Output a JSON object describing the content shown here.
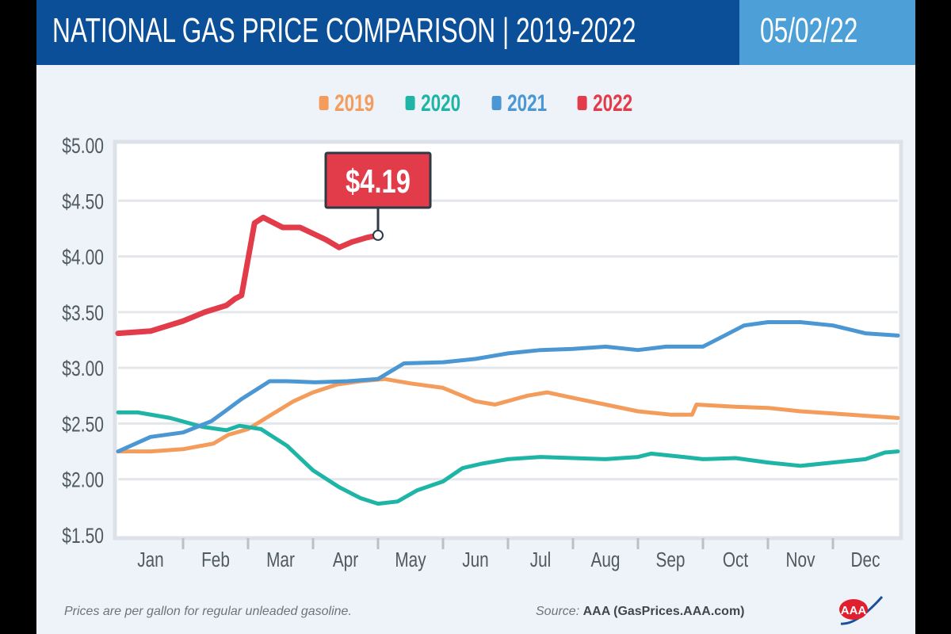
{
  "header": {
    "title": "NATIONAL GAS PRICE COMPARISON | 2019-2022",
    "date": "05/02/22"
  },
  "footer": {
    "note": "Prices are per gallon for regular unleaded gasoline.",
    "source_label": "Source:",
    "source_value": "AAA (GasPrices.AAA.com)",
    "logo": "AAA"
  },
  "chart_data": {
    "type": "line",
    "title": "NATIONAL GAS PRICE COMPARISON | 2019-2022",
    "xlabel": "",
    "ylabel": "",
    "categories": [
      "Jan",
      "Feb",
      "Mar",
      "Apr",
      "May",
      "Jun",
      "Jul",
      "Aug",
      "Sep",
      "Oct",
      "Nov",
      "Dec"
    ],
    "yticks": [
      "$1.50",
      "$2.00",
      "$2.50",
      "$3.00",
      "$3.50",
      "$4.00",
      "$4.50",
      "$5.00"
    ],
    "ylim": [
      1.5,
      5.0
    ],
    "grid": true,
    "legend": "top-center",
    "annotation": {
      "series": "2022",
      "text": "$4.19",
      "x": "05-01",
      "y": 4.19
    },
    "series": [
      {
        "name": "2019",
        "color": "#f39c5c",
        "points": [
          [
            "01-01",
            2.25
          ],
          [
            "01-16",
            2.25
          ],
          [
            "02-01",
            2.27
          ],
          [
            "02-15",
            2.32
          ],
          [
            "02-22",
            2.4
          ],
          [
            "03-01",
            2.45
          ],
          [
            "03-11",
            2.57
          ],
          [
            "03-22",
            2.7
          ],
          [
            "04-01",
            2.78
          ],
          [
            "04-12",
            2.85
          ],
          [
            "04-23",
            2.88
          ],
          [
            "05-04",
            2.9
          ],
          [
            "05-16",
            2.86
          ],
          [
            "06-01",
            2.82
          ],
          [
            "06-16",
            2.7
          ],
          [
            "06-25",
            2.67
          ],
          [
            "07-10",
            2.75
          ],
          [
            "07-19",
            2.78
          ],
          [
            "08-01",
            2.73
          ],
          [
            "08-16",
            2.67
          ],
          [
            "09-01",
            2.61
          ],
          [
            "09-16",
            2.58
          ],
          [
            "09-26",
            2.58
          ],
          [
            "09-28",
            2.67
          ],
          [
            "10-16",
            2.65
          ],
          [
            "11-01",
            2.64
          ],
          [
            "11-16",
            2.61
          ],
          [
            "12-01",
            2.59
          ],
          [
            "12-16",
            2.57
          ],
          [
            "12-31",
            2.55
          ]
        ]
      },
      {
        "name": "2020",
        "color": "#1fb5a6",
        "points": [
          [
            "01-01",
            2.6
          ],
          [
            "01-10",
            2.6
          ],
          [
            "01-25",
            2.55
          ],
          [
            "02-10",
            2.47
          ],
          [
            "02-21",
            2.44
          ],
          [
            "02-27",
            2.48
          ],
          [
            "03-07",
            2.45
          ],
          [
            "03-19",
            2.3
          ],
          [
            "04-01",
            2.08
          ],
          [
            "04-13",
            1.93
          ],
          [
            "04-23",
            1.83
          ],
          [
            "05-01",
            1.78
          ],
          [
            "05-10",
            1.8
          ],
          [
            "05-19",
            1.9
          ],
          [
            "06-01",
            1.98
          ],
          [
            "06-10",
            2.1
          ],
          [
            "06-19",
            2.14
          ],
          [
            "07-01",
            2.18
          ],
          [
            "07-16",
            2.2
          ],
          [
            "08-01",
            2.19
          ],
          [
            "08-16",
            2.18
          ],
          [
            "09-01",
            2.2
          ],
          [
            "09-07",
            2.23
          ],
          [
            "09-22",
            2.2
          ],
          [
            "10-01",
            2.18
          ],
          [
            "10-16",
            2.19
          ],
          [
            "11-01",
            2.15
          ],
          [
            "11-16",
            2.12
          ],
          [
            "12-01",
            2.15
          ],
          [
            "12-16",
            2.18
          ],
          [
            "12-25",
            2.24
          ],
          [
            "12-31",
            2.25
          ]
        ]
      },
      {
        "name": "2021",
        "color": "#4a97d4",
        "points": [
          [
            "01-01",
            2.25
          ],
          [
            "01-16",
            2.38
          ],
          [
            "02-01",
            2.42
          ],
          [
            "02-14",
            2.52
          ],
          [
            "02-21",
            2.62
          ],
          [
            "02-28",
            2.72
          ],
          [
            "03-11",
            2.88
          ],
          [
            "03-19",
            2.88
          ],
          [
            "04-02",
            2.87
          ],
          [
            "04-17",
            2.88
          ],
          [
            "05-01",
            2.9
          ],
          [
            "05-13",
            3.04
          ],
          [
            "06-01",
            3.05
          ],
          [
            "06-16",
            3.08
          ],
          [
            "07-01",
            3.13
          ],
          [
            "07-16",
            3.16
          ],
          [
            "08-01",
            3.17
          ],
          [
            "08-16",
            3.19
          ],
          [
            "09-01",
            3.16
          ],
          [
            "09-14",
            3.19
          ],
          [
            "10-01",
            3.19
          ],
          [
            "10-10",
            3.28
          ],
          [
            "10-20",
            3.38
          ],
          [
            "11-01",
            3.41
          ],
          [
            "11-16",
            3.41
          ],
          [
            "12-01",
            3.38
          ],
          [
            "12-16",
            3.31
          ],
          [
            "12-31",
            3.29
          ]
        ]
      },
      {
        "name": "2022",
        "color": "#e23b4a",
        "points": [
          [
            "01-01",
            3.31
          ],
          [
            "01-16",
            3.33
          ],
          [
            "02-01",
            3.42
          ],
          [
            "02-11",
            3.5
          ],
          [
            "02-21",
            3.56
          ],
          [
            "02-25",
            3.62
          ],
          [
            "02-28",
            3.65
          ],
          [
            "03-04",
            4.3
          ],
          [
            "03-08",
            4.35
          ],
          [
            "03-17",
            4.26
          ],
          [
            "03-25",
            4.26
          ],
          [
            "04-07",
            4.15
          ],
          [
            "04-13",
            4.08
          ],
          [
            "04-19",
            4.13
          ],
          [
            "04-26",
            4.17
          ],
          [
            "05-01",
            4.19
          ]
        ]
      }
    ]
  }
}
